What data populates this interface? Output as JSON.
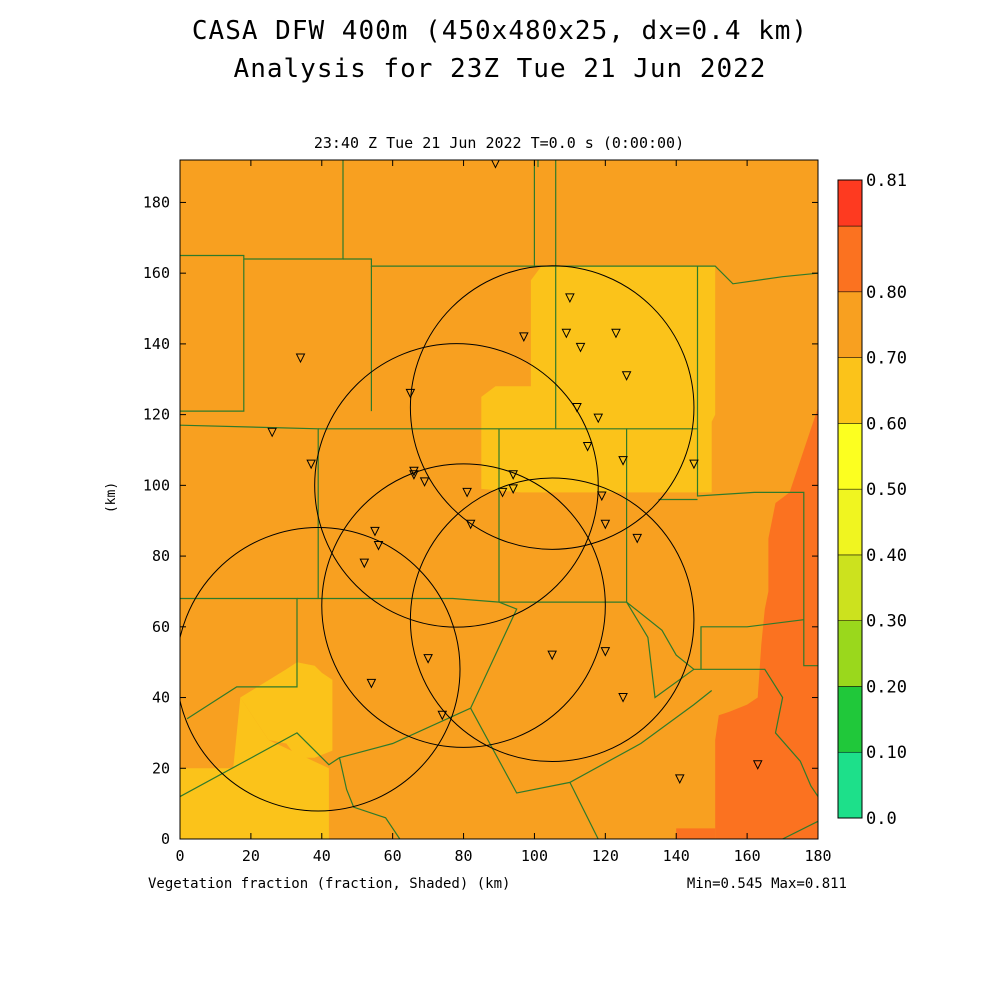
{
  "chart_data": {
    "type": "heatmap",
    "title": "CASA DFW 400m (450x480x25, dx=0.4 km)",
    "title2": "Analysis for 23Z Tue 21 Jun 2022",
    "subtitle": "23:40 Z Tue 21 Jun 2022   T=0.0 s (0:00:00)",
    "xlabel": "Vegetation fraction (fraction, Shaded)  (km)",
    "ylabel": "(km)",
    "min_max_text": "Min=0.545 Max=0.811",
    "xlim": [
      0,
      180
    ],
    "ylim": [
      0,
      192
    ],
    "x_ticks": [
      "0",
      "20",
      "40",
      "60",
      "80",
      "100",
      "120",
      "140",
      "160",
      "180"
    ],
    "y_ticks": [
      "0",
      "20",
      "40",
      "60",
      "80",
      "100",
      "120",
      "140",
      "160",
      "180"
    ],
    "colorbar": {
      "labels": [
        "0.0",
        "0.10",
        "0.20",
        "0.30",
        "0.40",
        "0.50",
        "0.60",
        "0.70",
        "0.80",
        "0.81"
      ],
      "colors": [
        "#1de08a",
        "#20c83a",
        "#9ad81c",
        "#cce21e",
        "#f0f520",
        "#fcff20",
        "#fbc31a",
        "#f8a020",
        "#fb7220",
        "#fe3a20"
      ]
    },
    "field_regions": [
      {
        "value": 0.65,
        "color": "#f8a020",
        "polygon": [
          [
            0,
            0
          ],
          [
            180,
            0
          ],
          [
            180,
            192
          ],
          [
            0,
            192
          ]
        ]
      },
      {
        "value": 0.57,
        "color": "#fbc31a",
        "polygon": [
          [
            106,
            162
          ],
          [
            151,
            162
          ],
          [
            151,
            120
          ],
          [
            150,
            118
          ],
          [
            150,
            98
          ],
          [
            96,
            98
          ],
          [
            85,
            99
          ],
          [
            85,
            125
          ],
          [
            89,
            128
          ],
          [
            99,
            128
          ],
          [
            99,
            158
          ],
          [
            102,
            162
          ]
        ]
      },
      {
        "value": 0.57,
        "color": "#fbc31a",
        "polygon": [
          [
            0,
            0
          ],
          [
            42,
            0
          ],
          [
            42,
            20
          ],
          [
            25,
            28
          ],
          [
            17,
            40
          ],
          [
            15,
            20
          ],
          [
            0,
            20
          ]
        ]
      },
      {
        "value": 0.57,
        "color": "#fbc31a",
        "polygon": [
          [
            17,
            40
          ],
          [
            30,
            48
          ],
          [
            33,
            50
          ],
          [
            38,
            49
          ],
          [
            40,
            47
          ],
          [
            43,
            45
          ],
          [
            43,
            25
          ],
          [
            38,
            23
          ],
          [
            33,
            23
          ],
          [
            30,
            27
          ],
          [
            25,
            28
          ]
        ]
      },
      {
        "value": 0.75,
        "color": "#fb7220",
        "polygon": [
          [
            151,
            0
          ],
          [
            180,
            0
          ],
          [
            180,
            122
          ],
          [
            172,
            98
          ],
          [
            168,
            95
          ],
          [
            166,
            85
          ],
          [
            166,
            70
          ],
          [
            165,
            65
          ],
          [
            164,
            55
          ],
          [
            163,
            40
          ],
          [
            160,
            38
          ],
          [
            155,
            36
          ],
          [
            152,
            35
          ],
          [
            151,
            28
          ]
        ]
      },
      {
        "value": 0.75,
        "color": "#fb7220",
        "polygon": [
          [
            140,
            0
          ],
          [
            151,
            0
          ],
          [
            151,
            3
          ],
          [
            140,
            3
          ]
        ]
      }
    ],
    "county_lines": [
      [
        [
          0,
          165
        ],
        [
          18,
          165
        ],
        [
          18,
          164
        ],
        [
          46,
          164
        ],
        [
          46,
          192
        ]
      ],
      [
        [
          46,
          164
        ],
        [
          54,
          164
        ],
        [
          54,
          162
        ],
        [
          106,
          162
        ]
      ],
      [
        [
          18,
          164
        ],
        [
          18,
          121
        ],
        [
          0,
          121
        ]
      ],
      [
        [
          54,
          162
        ],
        [
          54,
          121
        ]
      ],
      [
        [
          0,
          68
        ],
        [
          33,
          68
        ],
        [
          33,
          43
        ],
        [
          16,
          43
        ],
        [
          2,
          34
        ]
      ],
      [
        [
          0,
          12
        ],
        [
          33,
          30
        ],
        [
          42,
          21
        ],
        [
          45,
          23
        ],
        [
          60,
          27
        ],
        [
          82,
          37
        ],
        [
          95,
          65
        ],
        [
          90,
          67
        ],
        [
          77,
          68
        ],
        [
          39,
          68
        ],
        [
          39,
          116
        ],
        [
          0,
          117
        ]
      ],
      [
        [
          33,
          68
        ],
        [
          39,
          68
        ]
      ],
      [
        [
          39,
          116
        ],
        [
          106,
          116
        ],
        [
          106,
          162
        ],
        [
          106,
          192
        ]
      ],
      [
        [
          90,
          67
        ],
        [
          90,
          116
        ]
      ],
      [
        [
          90,
          67
        ],
        [
          126,
          67
        ],
        [
          126,
          116
        ],
        [
          106,
          116
        ]
      ],
      [
        [
          126,
          67
        ],
        [
          132,
          57
        ],
        [
          134,
          40
        ],
        [
          145,
          48
        ],
        [
          165,
          48
        ],
        [
          170,
          40
        ],
        [
          168,
          30
        ],
        [
          175,
          22
        ],
        [
          178,
          15
        ],
        [
          180,
          12
        ]
      ],
      [
        [
          126,
          67
        ],
        [
          136,
          59
        ],
        [
          140,
          52
        ],
        [
          145,
          48
        ]
      ],
      [
        [
          45,
          23
        ],
        [
          47,
          14
        ],
        [
          49,
          9
        ],
        [
          58,
          6
        ],
        [
          62,
          0
        ]
      ],
      [
        [
          82,
          37
        ],
        [
          95,
          13
        ],
        [
          110,
          16
        ],
        [
          130,
          27
        ],
        [
          145,
          38
        ],
        [
          150,
          42
        ]
      ],
      [
        [
          110,
          16
        ],
        [
          118,
          0
        ]
      ],
      [
        [
          106,
          162
        ],
        [
          151,
          162
        ],
        [
          156,
          157
        ],
        [
          170,
          159
        ],
        [
          180,
          160
        ]
      ],
      [
        [
          146,
          116
        ],
        [
          146,
          162
        ]
      ],
      [
        [
          126,
          116
        ],
        [
          146,
          116
        ],
        [
          146,
          97
        ],
        [
          162,
          98
        ],
        [
          176,
          98
        ],
        [
          176,
          49
        ],
        [
          180,
          49
        ]
      ],
      [
        [
          135,
          96
        ],
        [
          146,
          96
        ]
      ],
      [
        [
          147,
          48
        ],
        [
          147,
          60
        ],
        [
          160,
          60
        ],
        [
          176,
          62
        ]
      ],
      [
        [
          101,
          192
        ],
        [
          101,
          190
        ]
      ],
      [
        [
          180,
          5
        ],
        [
          170,
          0
        ]
      ],
      [
        [
          100,
          192
        ],
        [
          100,
          162
        ]
      ]
    ],
    "radar_circles": [
      {
        "center": [
          80,
          66
        ],
        "radius_km": 40
      },
      {
        "center": [
          39,
          48
        ],
        "radius_km": 40
      },
      {
        "center": [
          105,
          62
        ],
        "radius_km": 40
      },
      {
        "center": [
          78,
          100
        ],
        "radius_km": 40
      },
      {
        "center": [
          105,
          122
        ],
        "radius_km": 40
      }
    ],
    "station_markers": [
      [
        89,
        191
      ],
      [
        110,
        153
      ],
      [
        97,
        142
      ],
      [
        109,
        143
      ],
      [
        113,
        139
      ],
      [
        123,
        143
      ],
      [
        126,
        131
      ],
      [
        34,
        136
      ],
      [
        65,
        126
      ],
      [
        112,
        122
      ],
      [
        118,
        119
      ],
      [
        26,
        115
      ],
      [
        37,
        106
      ],
      [
        66,
        104
      ],
      [
        66,
        103
      ],
      [
        69,
        101
      ],
      [
        115,
        111
      ],
      [
        125,
        107
      ],
      [
        145,
        106
      ],
      [
        94,
        103
      ],
      [
        91,
        98
      ],
      [
        94,
        99
      ],
      [
        81,
        98
      ],
      [
        119,
        97
      ],
      [
        82,
        89
      ],
      [
        120,
        89
      ],
      [
        129,
        85
      ],
      [
        55,
        87
      ],
      [
        56,
        83
      ],
      [
        52,
        78
      ],
      [
        70,
        51
      ],
      [
        54,
        44
      ],
      [
        74,
        35
      ],
      [
        105,
        52
      ],
      [
        120,
        53
      ],
      [
        125,
        40
      ],
      [
        141,
        17
      ],
      [
        163,
        21
      ]
    ]
  }
}
